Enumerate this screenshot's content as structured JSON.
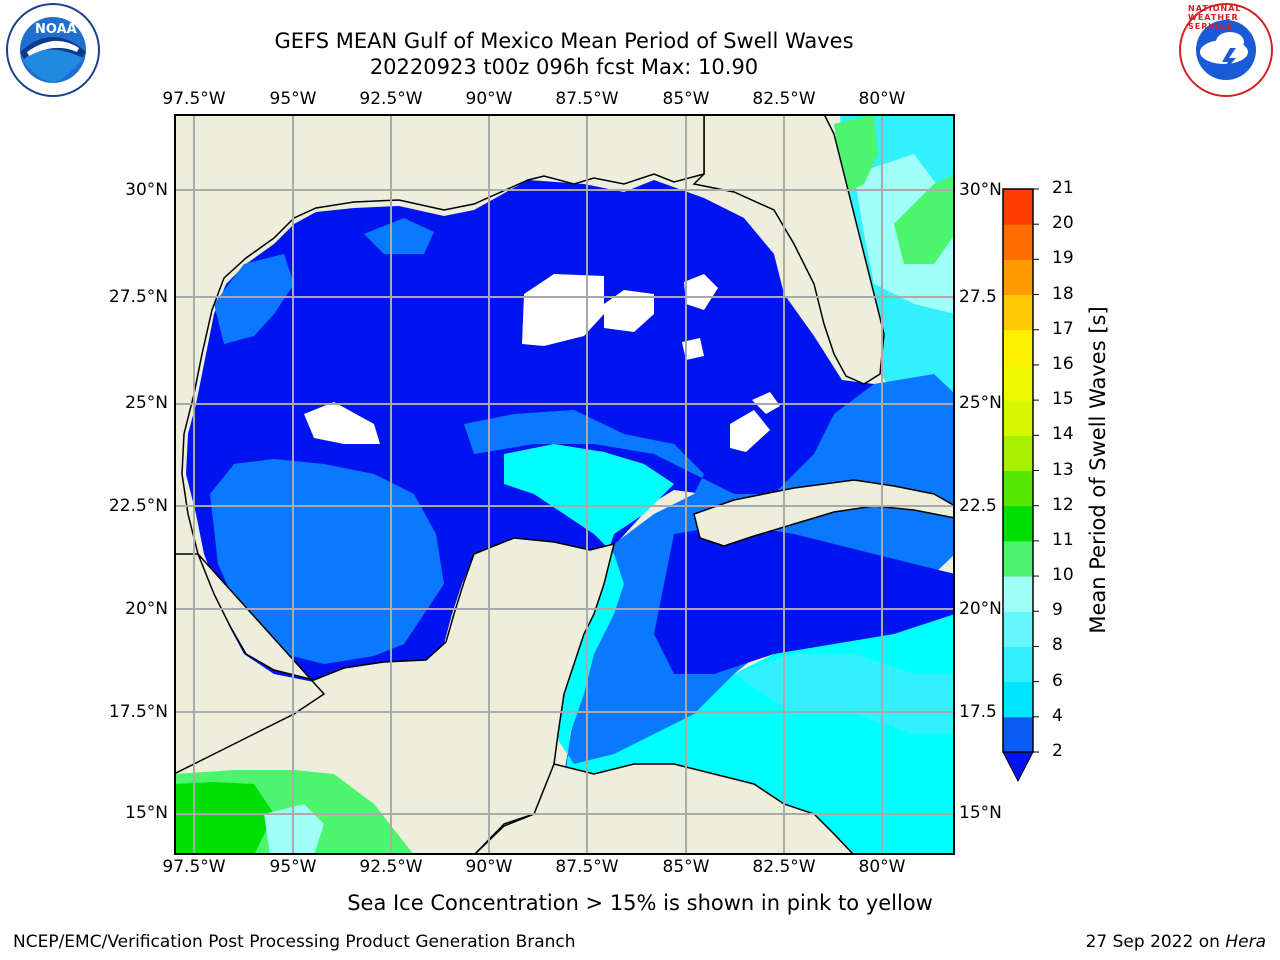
{
  "title_line1": "GEFS MEAN Gulf of Mexico Mean Period of Swell Waves",
  "title_line2": "20220923 t00z 096h fcst   Max: 10.90",
  "lon_ticks": [
    "97.5°W",
    "95°W",
    "92.5°W",
    "90°W",
    "87.5°W",
    "85°W",
    "82.5°W",
    "80°W"
  ],
  "lat_ticks_left": [
    "30°N",
    "27.5°N",
    "25°N",
    "22.5°N",
    "20°N",
    "17.5°N",
    "15°N"
  ],
  "lat_ticks_right": [
    "30°N",
    "27.5",
    "25°N",
    "22.5",
    "20°N",
    "17.5",
    "15°N"
  ],
  "colorbar": {
    "label": "Mean Period of Swell Waves [s]",
    "ticks": [
      "2",
      "4",
      "6",
      "8",
      "9",
      "10",
      "11",
      "12",
      "13",
      "14",
      "15",
      "16",
      "17",
      "18",
      "19",
      "20",
      "21"
    ],
    "colors": [
      "#0a5cf5",
      "#00e5ff",
      "#33f0ff",
      "#66f8ff",
      "#a0fff8",
      "#4cf56e",
      "#00e000",
      "#55e800",
      "#a8f000",
      "#d8f800",
      "#f0f800",
      "#fff000",
      "#ffc800",
      "#ff9a00",
      "#ff6c00",
      "#ff3c00",
      "#ff0a00"
    ]
  },
  "sea_ice_note": "Sea Ice Concentration > 15% is shown in pink to yellow",
  "footer_left": "NCEP/EMC/Verification Post Processing Product Generation Branch",
  "footer_date": "27 Sep 2022 on ",
  "footer_machine": "Hera",
  "logos": {
    "left": "noaa-logo",
    "right": "nws-logo"
  },
  "nws_ring_text": "NATIONAL WEATHER SERVICE",
  "colors": {
    "land": "#eeeedd",
    "deep_blue": "#0014f0",
    "mid_blue": "#0a78ff",
    "cyan": "#00ffff"
  }
}
